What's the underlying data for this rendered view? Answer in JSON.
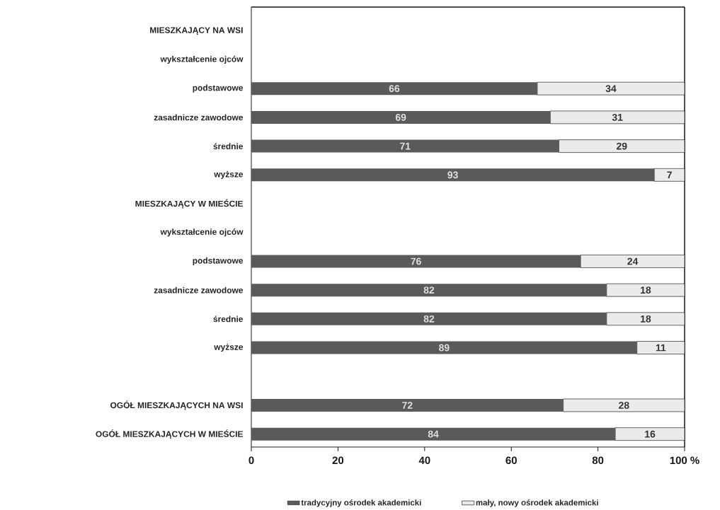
{
  "chart_data": {
    "type": "bar",
    "orientation": "horizontal",
    "stacked": true,
    "data_labels": true,
    "legend": "bottom",
    "grid": false,
    "categories": [
      "MIESZKAJĄCY NA WSI",
      "wykształcenie ojców",
      "podstawowe",
      "zasadnicze zawodowe",
      "średnie",
      "wyższe",
      "MIESZKAJĄCY W MIEŚCIE",
      "wykształcenie ojców",
      "podstawowe",
      "zasadnicze zawodowe",
      "średnie",
      "wyższe",
      null,
      "OGÓŁ MIESZKAJĄCYCH NA WSI",
      "OGÓŁ MIESZKAJĄCYCH W MIEŚCIE"
    ],
    "series": [
      {
        "name": "tradycyjny ośrodek akademicki",
        "color": "#5a5a5a",
        "values": [
          null,
          null,
          66,
          69,
          71,
          93,
          null,
          null,
          76,
          82,
          82,
          89,
          null,
          72,
          84
        ]
      },
      {
        "name": "mały, nowy ośrodek akademicki",
        "color": "#ebebeb",
        "values": [
          null,
          null,
          34,
          31,
          29,
          7,
          null,
          null,
          24,
          18,
          18,
          11,
          null,
          28,
          16
        ]
      }
    ],
    "xlim": [
      0,
      100
    ],
    "xticks": [
      0,
      20,
      40,
      60,
      80,
      {
        "value": 100,
        "label": "100 %"
      }
    ]
  }
}
